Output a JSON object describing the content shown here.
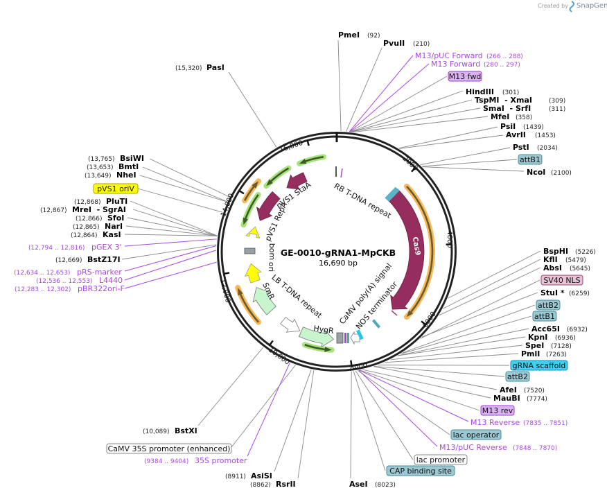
{
  "watermark": {
    "prefix": "Created by",
    "brand": "SnapGene"
  },
  "map": {
    "name": "GE-0010-gRNA1-MpCKB",
    "length": "16,690 bp"
  },
  "ticks": [
    "2000",
    "4000",
    "6000",
    "8000",
    "10,000",
    "12,000",
    "14,000",
    "16,000"
  ],
  "inner_labels": [
    "pVS1 StaA",
    "RB T-DNA repeat",
    "Cas9",
    "pVS1 RepA",
    "bom",
    "ori",
    "SmR",
    "LB T-DNA repeat",
    "HygR",
    "CaMV poly(A) signal",
    "NOS terminator"
  ],
  "sites": [
    {
      "name": "PmeI",
      "pos": "(92)"
    },
    {
      "name": "PvuII",
      "pos": "(210)"
    },
    {
      "name": "HindIII",
      "pos": "(301)"
    },
    {
      "name": "TspMI  - XmaI",
      "pos": "(309)"
    },
    {
      "name": "SmaI  - SrfI",
      "pos": "(311)"
    },
    {
      "name": "MfeI",
      "pos": "(358)"
    },
    {
      "name": "PsiI",
      "pos": "(1439)"
    },
    {
      "name": "AvrII",
      "pos": "(1453)"
    },
    {
      "name": "PstI",
      "pos": "(2034)"
    },
    {
      "name": "NcoI",
      "pos": "(2100)"
    },
    {
      "name": "BspHI",
      "pos": "(5226)"
    },
    {
      "name": "KflI",
      "pos": "(5479)"
    },
    {
      "name": "AbsI",
      "pos": "(5645)"
    },
    {
      "name": "StuI *",
      "pos": "(6259)"
    },
    {
      "name": "Acc65I",
      "pos": "(6932)"
    },
    {
      "name": "KpnI",
      "pos": "(6936)"
    },
    {
      "name": "SpeI",
      "pos": "(7128)"
    },
    {
      "name": "PmlI",
      "pos": "(7263)"
    },
    {
      "name": "AfeI",
      "pos": "(7520)"
    },
    {
      "name": "MauBI",
      "pos": "(7774)"
    },
    {
      "name": "AseI",
      "pos": "(8023)"
    },
    {
      "name": "RsrII",
      "pos": "(8862)"
    },
    {
      "name": "AsiSI",
      "pos": "(8911)"
    },
    {
      "name": "BstXI",
      "pos": "(10,089)"
    },
    {
      "name": "PasI",
      "pos": "(15,320)"
    },
    {
      "name": "BsiWI",
      "pos": "(13,765)"
    },
    {
      "name": "BmtI",
      "pos": "(13,653)"
    },
    {
      "name": "NheI",
      "pos": "(13,649)"
    },
    {
      "name": "PluTI",
      "pos": "(12,868)"
    },
    {
      "name": "MreI  - SgrAI",
      "pos": "(12,867)"
    },
    {
      "name": "SfoI",
      "pos": "(12,866)"
    },
    {
      "name": "NarI",
      "pos": "(12,865)"
    },
    {
      "name": "KasI",
      "pos": "(12,864)"
    },
    {
      "name": "BstZ17I",
      "pos": "(12,669)"
    }
  ],
  "primers": [
    {
      "name": "M13/pUC Forward",
      "range": "(266 .. 288)"
    },
    {
      "name": "M13 Forward",
      "range": "(280 .. 297)"
    },
    {
      "name": "M13 Reverse",
      "range": "(7835 .. 7851)"
    },
    {
      "name": "M13/pUC Reverse",
      "range": "(7848 .. 7870)"
    },
    {
      "name": "35S promoter",
      "range": "(9384 .. 9404)"
    },
    {
      "name": "pGEX 3'",
      "range": "(12,794 .. 12,816)"
    },
    {
      "name": "pRS-marker",
      "range": "(12,634 .. 12,653)"
    },
    {
      "name": "L4440",
      "range": "(12,536 .. 12,553)"
    },
    {
      "name": "pBR322ori-F",
      "range": "(12,283 .. 12,302)"
    }
  ],
  "feature_boxes": [
    {
      "label": "M13 fwd",
      "color": "#d9b3f0",
      "border": "#a33ad8"
    },
    {
      "label": "attB1",
      "color": "#9cc8d2",
      "border": "#4a8b99"
    },
    {
      "label": "SV40 NLS",
      "color": "#e6c2d6",
      "border": "#a04070"
    },
    {
      "label": "attB2",
      "color": "#9cc8d2",
      "border": "#4a8b99"
    },
    {
      "label": "attB1",
      "color": "#9cc8d2",
      "border": "#4a8b99"
    },
    {
      "label": "gRNA scaffold",
      "color": "#3dd0f0",
      "border": "#1a90b0"
    },
    {
      "label": "attB2",
      "color": "#9cc8d2",
      "border": "#4a8b99"
    },
    {
      "label": "M13 rev",
      "color": "#d9b3f0",
      "border": "#a33ad8"
    },
    {
      "label": "lac operator",
      "color": "#9cc8d2",
      "border": "#4a8b99"
    },
    {
      "label": "lac promoter",
      "color": "#ffffff",
      "border": "#888888"
    },
    {
      "label": "CAP binding site",
      "color": "#9cc8d2",
      "border": "#4a8b99"
    },
    {
      "label": "CaMV 35S promoter (enhanced)",
      "color": "#ffffff",
      "border": "#888888"
    },
    {
      "label": "pVS1 oriV",
      "color": "#ffff00",
      "border": "#a8a000"
    }
  ],
  "colors": {
    "cas9": "#952e5f",
    "orf": "#f7b85a",
    "green": "#a6e27a",
    "primer": "#aa44e0"
  }
}
